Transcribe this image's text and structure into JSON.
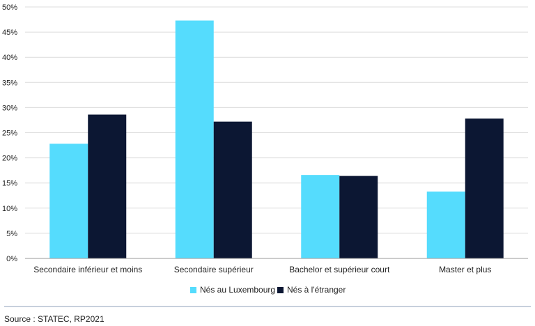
{
  "chart_data": {
    "type": "bar",
    "categories": [
      "Secondaire inférieur et moins",
      "Secondaire supérieur",
      "Bachelor et supérieur court",
      "Master et plus"
    ],
    "series": [
      {
        "name": "Nés au Luxembourg",
        "values": [
          22.8,
          47.3,
          16.6,
          13.3
        ],
        "color": "#55dcfd"
      },
      {
        "name": "Nés à l'étranger",
        "values": [
          28.6,
          27.2,
          16.4,
          27.8
        ],
        "color": "#0c1733"
      }
    ],
    "ylim": [
      0,
      50
    ],
    "yticks": [
      "0%",
      "5%",
      "10%",
      "15%",
      "20%",
      "25%",
      "30%",
      "35%",
      "40%",
      "45%",
      "50%"
    ],
    "grid": true,
    "legend_position": "bottom"
  },
  "source": "Source : STATEC, RP2021"
}
